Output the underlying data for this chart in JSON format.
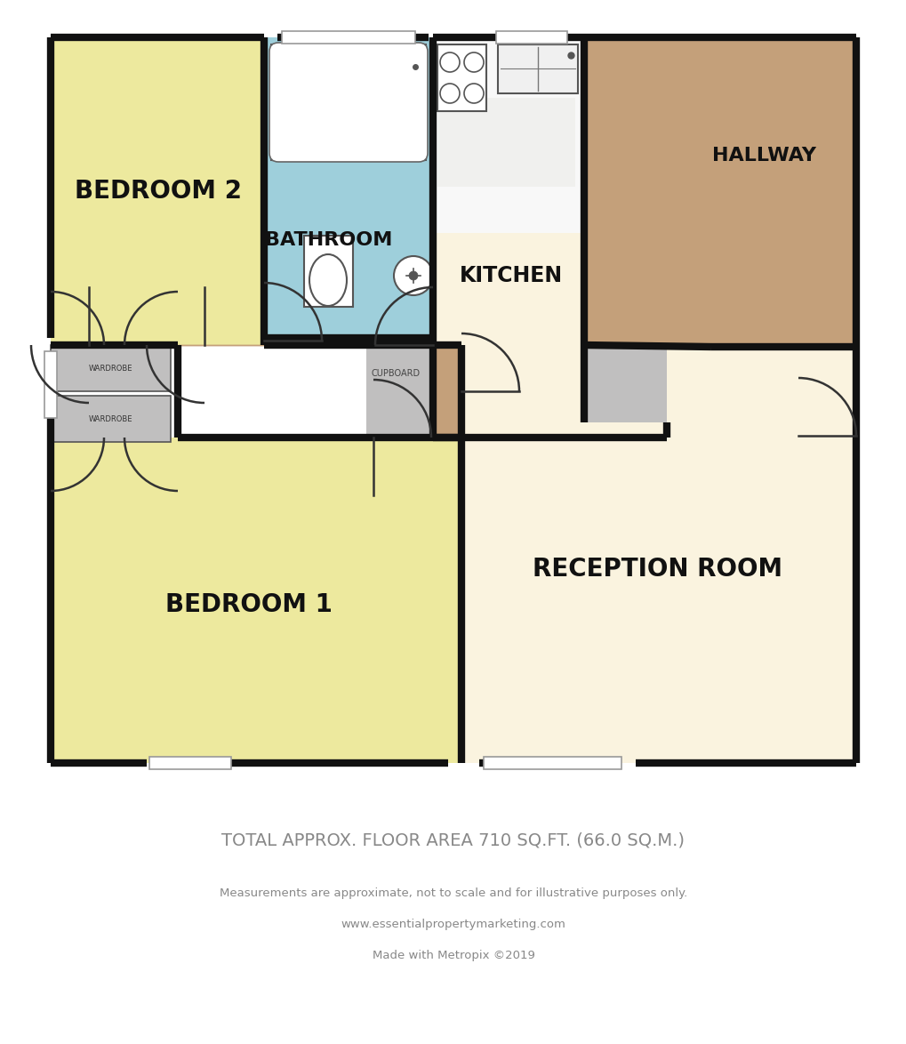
{
  "bg_color": "#ffffff",
  "wall_color": "#111111",
  "floor_yellow": "#ede99e",
  "floor_cream": "#faf3df",
  "floor_blue": "#9ecfdb",
  "floor_brown": "#c4a07a",
  "floor_gray": "#c0bfbf",
  "title_text": "TOTAL APPROX. FLOOR AREA 710 SQ.FT. (66.0 SQ.M.)",
  "subtitle_line1": "Measurements are approximate, not to scale and for illustrative purposes only.",
  "subtitle_line2": "www.essentialpropertymarketing.com",
  "subtitle_line3": "Made with Metropix ©2019",
  "text_gray": "#888888",
  "room_label_color": "#111111",
  "small_label_color": "#444444"
}
